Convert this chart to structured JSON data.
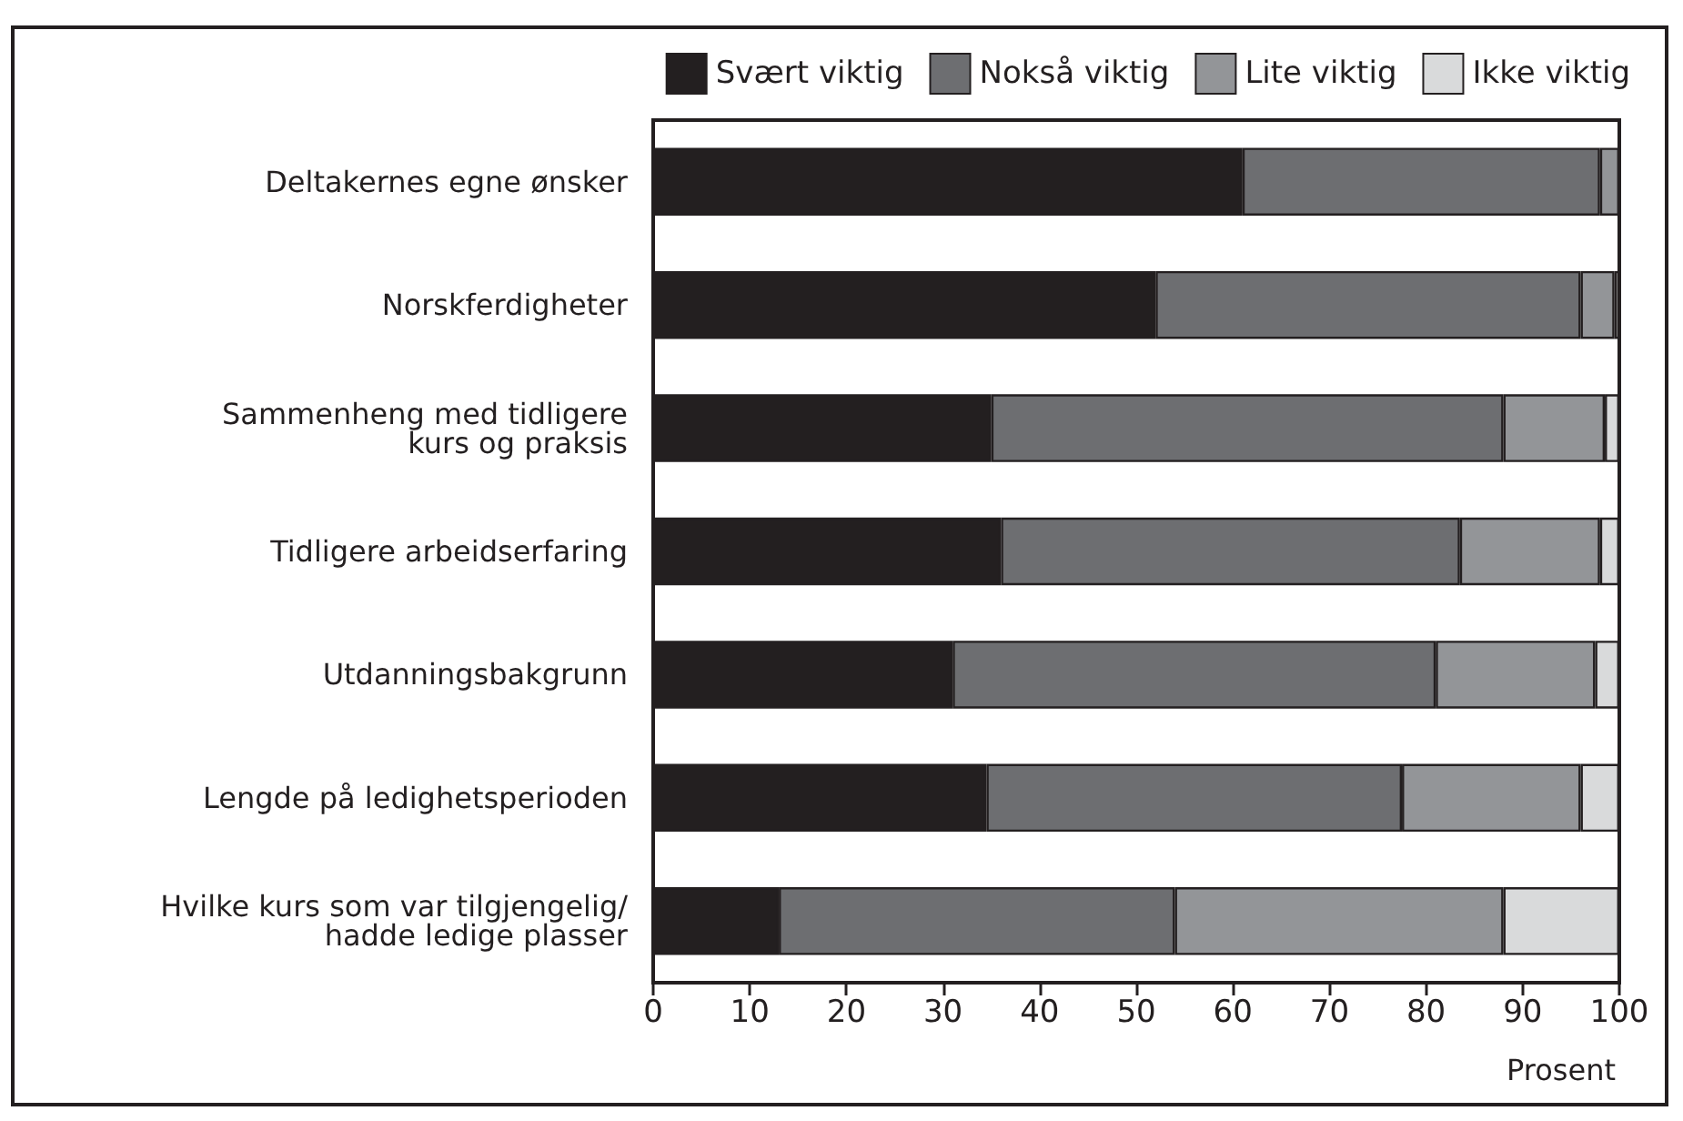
{
  "chart_data": {
    "type": "bar",
    "orientation": "horizontal",
    "stacked": true,
    "categories": [
      "Deltakernes egne ønsker",
      "Norskferdigheter",
      "Sammenheng med tidligere\nkurs og praksis",
      "Tidligere arbeidserfaring",
      "Utdanningsbakgrunn",
      "Lengde på ledighetsperioden",
      "Hvilke kurs som var tilgjengelig/\nhadde ledige plasser"
    ],
    "series": [
      {
        "name": "Svært viktig",
        "color": "#231f20",
        "values": [
          61,
          52,
          35,
          36,
          31,
          34.5,
          13
        ]
      },
      {
        "name": "Nokså viktig",
        "color": "#6d6e71",
        "values": [
          37,
          44,
          53,
          47.5,
          50,
          43,
          41
        ]
      },
      {
        "name": "Lite viktig",
        "color": "#939598",
        "values": [
          2,
          3.5,
          10.5,
          14.5,
          16.5,
          18.5,
          34
        ]
      },
      {
        "name": "Ikke viktig",
        "color": "#d9dadb",
        "values": [
          0,
          0.5,
          1.5,
          2,
          2.5,
          4,
          12
        ]
      }
    ],
    "xlabel": "Prosent",
    "xlim": [
      0,
      100
    ],
    "xticks": [
      0,
      10,
      20,
      30,
      40,
      50,
      60,
      70,
      80,
      90,
      100
    ],
    "grid": false,
    "legend": "top right"
  }
}
